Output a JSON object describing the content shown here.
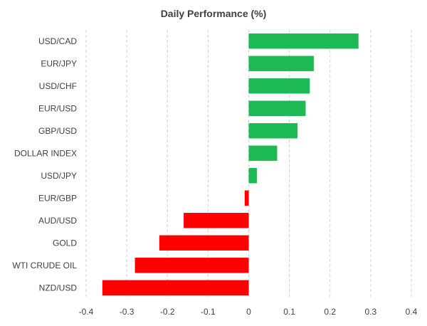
{
  "chart_data": {
    "type": "bar",
    "orientation": "horizontal",
    "title": "Daily Performance (%)",
    "xlabel": "",
    "ylabel": "",
    "categories": [
      "USD/CAD",
      "EUR/JPY",
      "USD/CHF",
      "EUR/USD",
      "GBP/USD",
      "DOLLAR INDEX",
      "USD/JPY",
      "EUR/GBP",
      "AUD/USD",
      "GOLD",
      "WTI CRUDE OIL",
      "NZD/USD"
    ],
    "values": [
      0.27,
      0.16,
      0.15,
      0.14,
      0.12,
      0.07,
      0.02,
      -0.01,
      -0.16,
      -0.22,
      -0.28,
      -0.36
    ],
    "xlim": [
      -0.4,
      0.4
    ],
    "xticks": [
      -0.4,
      -0.3,
      -0.2,
      -0.1,
      0,
      0.1,
      0.2,
      0.3,
      0.4
    ],
    "xtick_labels": [
      "-0.4",
      "-0.3",
      "-0.2",
      "-0.1",
      "0",
      "0.1",
      "0.2",
      "0.3",
      "0.4"
    ],
    "grid": "vertical dashed",
    "legend": "none",
    "colors": {
      "positive": "#1db954",
      "negative": "#ff0000",
      "grid": "#d0d0d0",
      "text": "#404040"
    }
  }
}
